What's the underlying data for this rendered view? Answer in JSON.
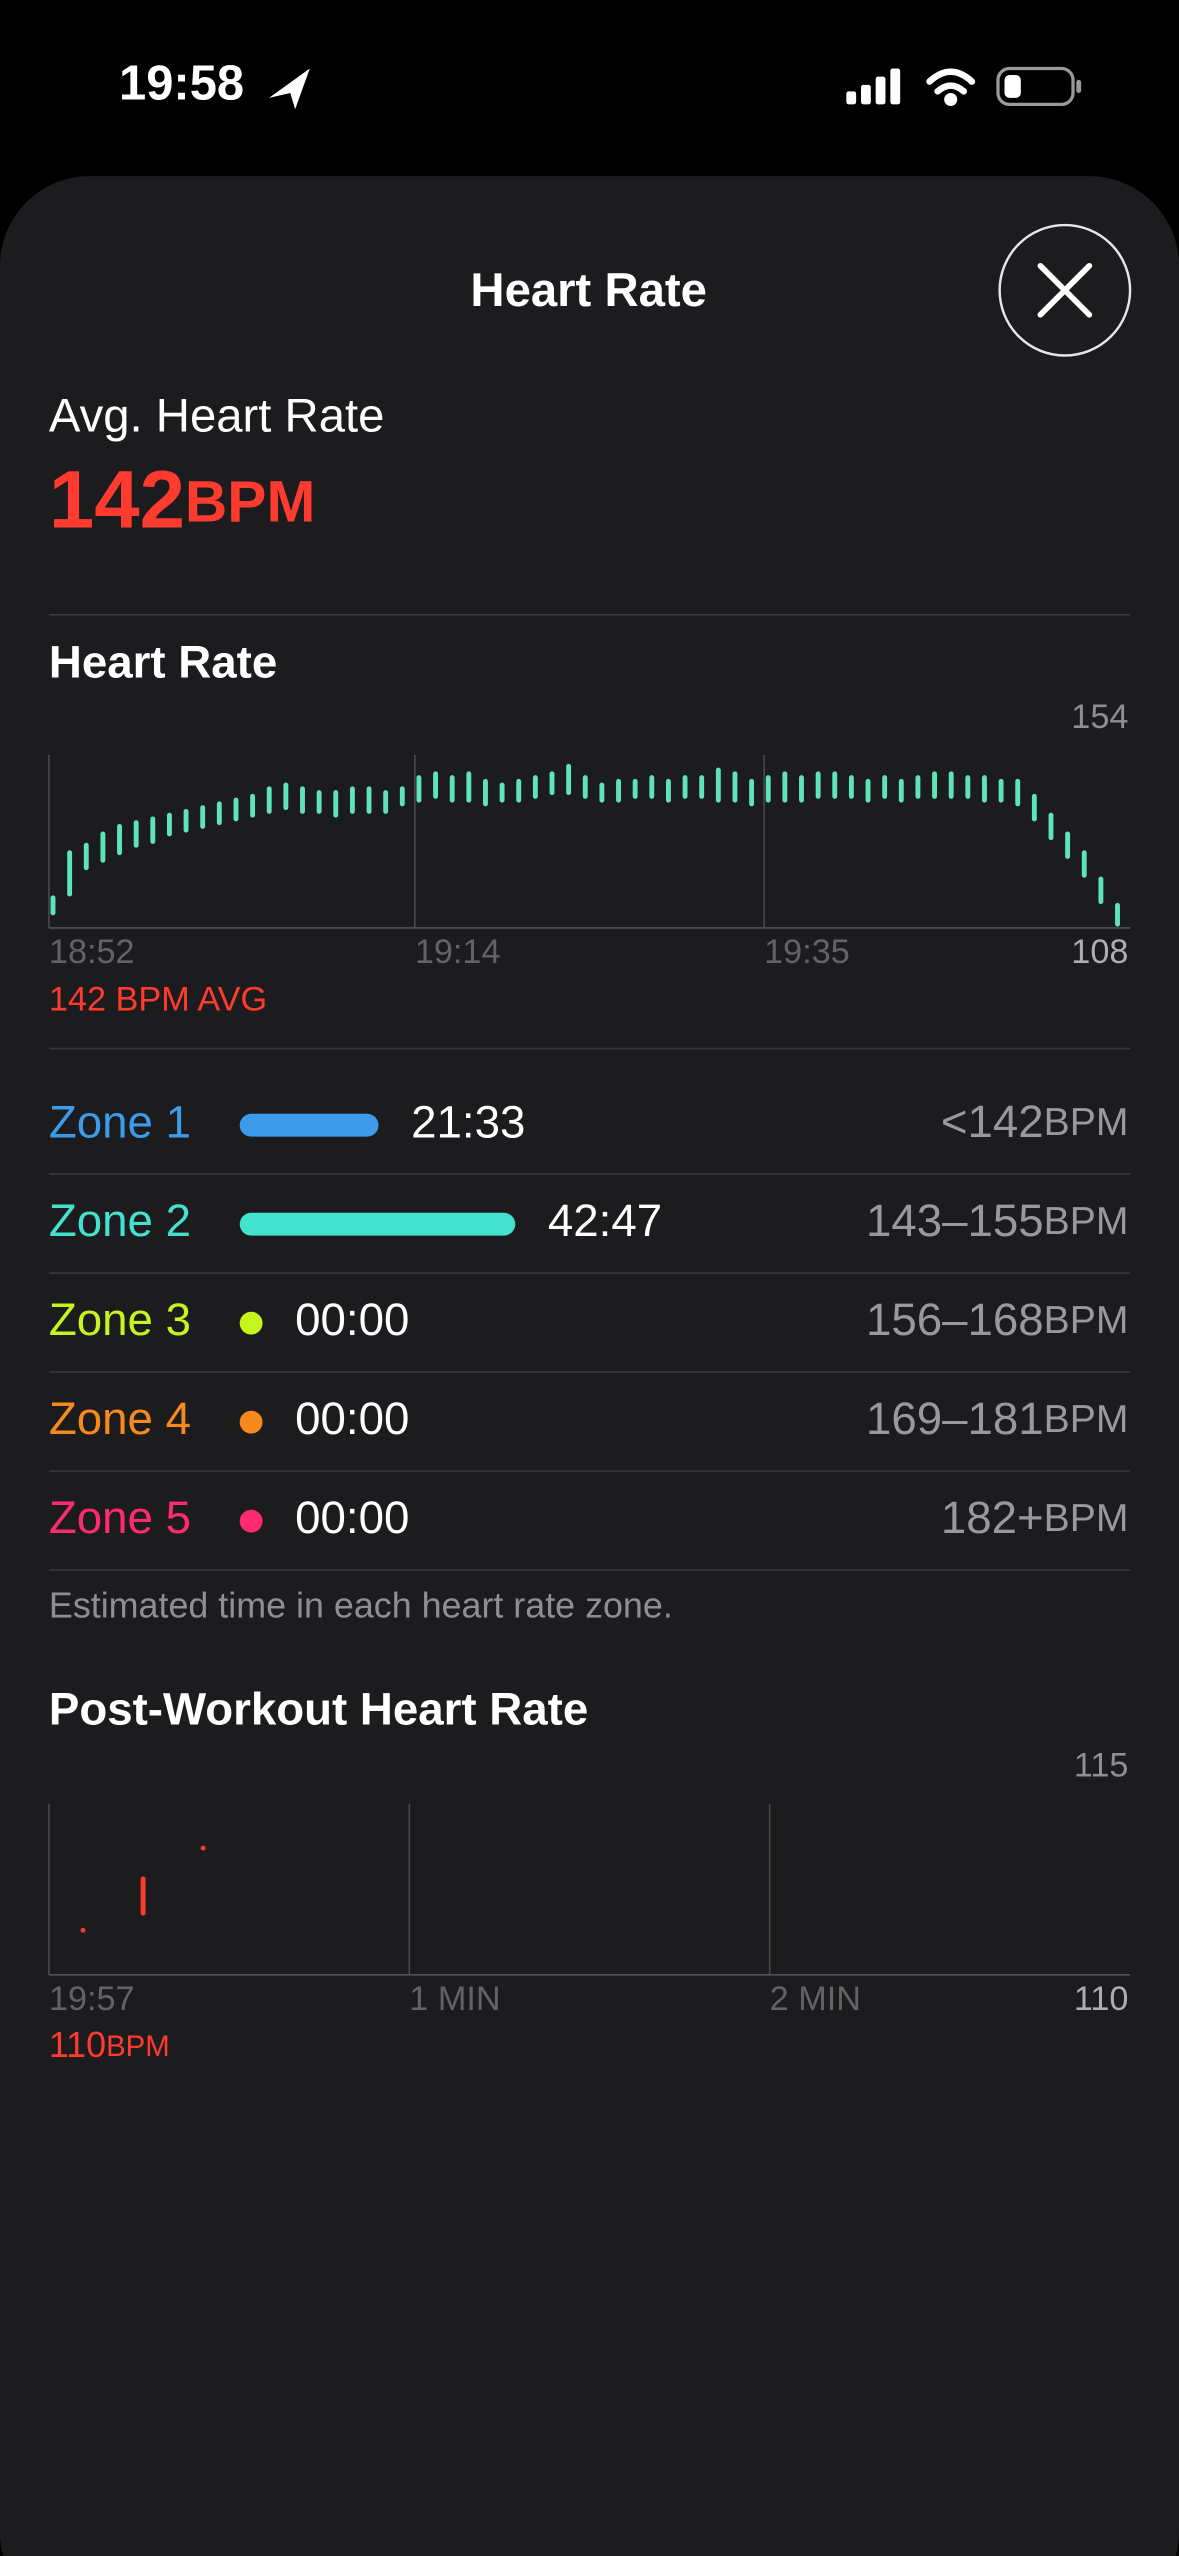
{
  "status_bar": {
    "time": "19:58"
  },
  "header": {
    "title": "Heart Rate"
  },
  "summary": {
    "label": "Avg. Heart Rate",
    "value": "142",
    "unit": "BPM"
  },
  "heart_rate_chart": {
    "type": "range-bar",
    "title": "Heart Rate",
    "color": "#5fe3b8",
    "xlim": [
      0,
      65
    ],
    "xticks": [
      {
        "value": 0,
        "label": "18:52"
      },
      {
        "value": 22,
        "label": "19:14"
      },
      {
        "value": 43,
        "label": "19:35"
      }
    ],
    "ylim": [
      108,
      154
    ],
    "yticks": [
      108,
      154
    ],
    "note": "142 BPM AVG",
    "x": [
      0,
      1,
      2,
      3,
      4,
      5,
      6,
      7,
      8,
      9,
      10,
      11,
      12,
      13,
      14,
      15,
      16,
      17,
      18,
      19,
      20,
      21,
      22,
      23,
      24,
      25,
      26,
      27,
      28,
      29,
      30,
      31,
      32,
      33,
      34,
      35,
      36,
      37,
      38,
      39,
      40,
      41,
      42,
      43,
      44,
      45,
      46,
      47,
      48,
      49,
      50,
      51,
      52,
      53,
      54,
      55,
      56,
      57,
      58,
      59,
      60,
      61,
      62,
      63,
      64
    ],
    "lows": [
      112,
      117,
      124,
      126,
      128,
      130,
      131,
      133,
      134,
      135,
      136,
      137,
      138,
      139,
      140,
      139,
      139,
      138,
      139,
      139,
      139,
      141,
      142,
      143,
      142,
      142,
      141,
      142,
      142,
      143,
      144,
      144,
      143,
      142,
      142,
      143,
      143,
      142,
      143,
      143,
      142,
      142,
      141,
      142,
      142,
      142,
      143,
      143,
      143,
      142,
      143,
      142,
      143,
      143,
      143,
      143,
      142,
      142,
      141,
      137,
      132,
      127,
      122,
      115,
      109
    ],
    "highs": [
      116,
      128,
      130,
      133,
      135,
      136,
      137,
      138,
      139,
      140,
      141,
      142,
      143,
      145,
      146,
      145,
      144,
      144,
      145,
      145,
      144,
      145,
      148,
      149,
      148,
      149,
      147,
      146,
      147,
      148,
      149,
      151,
      148,
      146,
      147,
      147,
      148,
      147,
      148,
      148,
      150,
      149,
      147,
      148,
      149,
      148,
      149,
      149,
      148,
      147,
      148,
      147,
      148,
      149,
      149,
      148,
      148,
      147,
      147,
      143,
      138,
      133,
      128,
      121,
      114
    ]
  },
  "zones": {
    "unit": "BPM",
    "rows": [
      {
        "name": "Zone 1",
        "color": "#3d9bec",
        "duration": 1293,
        "duration_label": "21:33",
        "range": "<142"
      },
      {
        "name": "Zone 2",
        "color": "#43e2cf",
        "duration": 2567,
        "duration_label": "42:47",
        "range": "143–155"
      },
      {
        "name": "Zone 3",
        "color": "#c6f41d",
        "duration": 0,
        "duration_label": "00:00",
        "range": "156–168"
      },
      {
        "name": "Zone 4",
        "color": "#f8891d",
        "duration": 0,
        "duration_label": "00:00",
        "range": "169–181"
      },
      {
        "name": "Zone 5",
        "color": "#ff2a70",
        "duration": 0,
        "duration_label": "00:00",
        "range": "182+"
      }
    ],
    "footnote": "Estimated time in each heart rate zone."
  },
  "post_chart": {
    "type": "range-bar",
    "title": "Post-Workout Heart Rate",
    "color": "#ff3b2f",
    "xlim": [
      0,
      180
    ],
    "xticks": [
      {
        "value": 0,
        "label": "19:57"
      },
      {
        "value": 60,
        "label": "1 MIN"
      },
      {
        "value": 120,
        "label": "2 MIN"
      }
    ],
    "ylim": [
      110,
      115
    ],
    "yticks": [
      110,
      115
    ],
    "note_value": "110",
    "note_unit": "BPM",
    "x": [
      5,
      15,
      25
    ],
    "lows": [
      111.3,
      111.8,
      113.7
    ],
    "highs": [
      111.3,
      112.8,
      113.7
    ]
  }
}
